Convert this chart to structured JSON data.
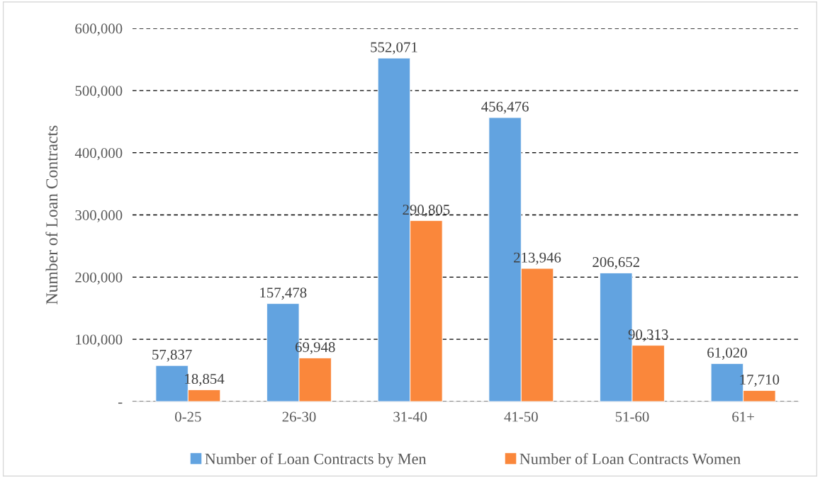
{
  "chart_data": {
    "type": "bar",
    "ylabel": "Number of Loan Contracts",
    "categories": [
      "0-25",
      "26-30",
      "31-40",
      "41-50",
      "51-60",
      "61+"
    ],
    "series": [
      {
        "name": "Number of Loan Contracts by Men",
        "color": "#62a3e0",
        "values": [
          57837,
          157478,
          552071,
          456476,
          206652,
          61020
        ],
        "value_labels": [
          "57,837",
          "157,478",
          "552,071",
          "456,476",
          "206,652",
          "61,020"
        ]
      },
      {
        "name": "Number of Loan Contracts Women",
        "color": "#fa873b",
        "values": [
          18854,
          69948,
          290805,
          213946,
          90313,
          17710
        ],
        "value_labels": [
          "18,854",
          "69,948",
          "290,805",
          "213,946",
          "90,313",
          "17,710"
        ]
      }
    ],
    "ylim": [
      0,
      600000
    ],
    "yticks": [
      {
        "value": 0,
        "label": "-"
      },
      {
        "value": 100000,
        "label": "100,000"
      },
      {
        "value": 200000,
        "label": "200,000"
      },
      {
        "value": 300000,
        "label": "300,000"
      },
      {
        "value": 400000,
        "label": "400,000"
      },
      {
        "value": 500000,
        "label": "500,000"
      },
      {
        "value": 600000,
        "label": "600,000"
      }
    ],
    "grid": "y",
    "legend": "bottom"
  }
}
